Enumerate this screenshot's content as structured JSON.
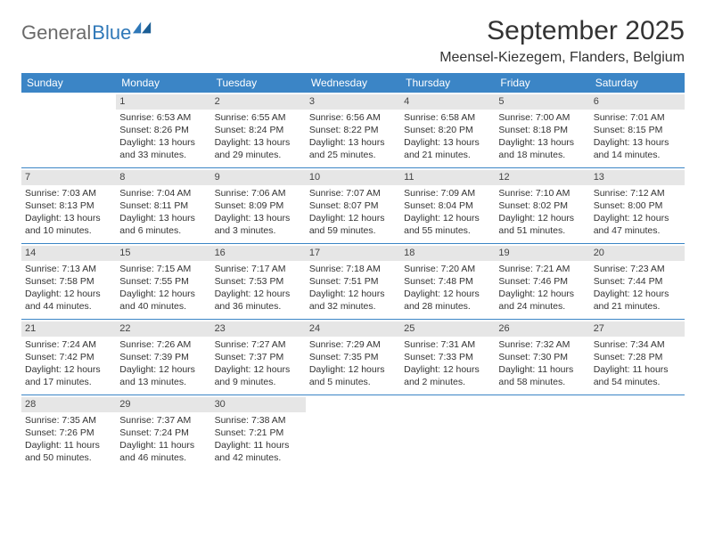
{
  "logo": {
    "part1": "General",
    "part2": "Blue"
  },
  "title": "September 2025",
  "location": "Meensel-Kiezegem, Flanders, Belgium",
  "colors": {
    "header_bg": "#3b85c6",
    "header_text": "#ffffff",
    "date_bg": "#e6e6e6",
    "rule": "#3b85c6",
    "text": "#333333",
    "logo_gray": "#6a6a6a",
    "logo_blue": "#2f78b8"
  },
  "dayNames": [
    "Sunday",
    "Monday",
    "Tuesday",
    "Wednesday",
    "Thursday",
    "Friday",
    "Saturday"
  ],
  "weeks": [
    [
      null,
      {
        "d": "1",
        "sr": "6:53 AM",
        "ss": "8:26 PM",
        "dl": "13 hours and 33 minutes."
      },
      {
        "d": "2",
        "sr": "6:55 AM",
        "ss": "8:24 PM",
        "dl": "13 hours and 29 minutes."
      },
      {
        "d": "3",
        "sr": "6:56 AM",
        "ss": "8:22 PM",
        "dl": "13 hours and 25 minutes."
      },
      {
        "d": "4",
        "sr": "6:58 AM",
        "ss": "8:20 PM",
        "dl": "13 hours and 21 minutes."
      },
      {
        "d": "5",
        "sr": "7:00 AM",
        "ss": "8:18 PM",
        "dl": "13 hours and 18 minutes."
      },
      {
        "d": "6",
        "sr": "7:01 AM",
        "ss": "8:15 PM",
        "dl": "13 hours and 14 minutes."
      }
    ],
    [
      {
        "d": "7",
        "sr": "7:03 AM",
        "ss": "8:13 PM",
        "dl": "13 hours and 10 minutes."
      },
      {
        "d": "8",
        "sr": "7:04 AM",
        "ss": "8:11 PM",
        "dl": "13 hours and 6 minutes."
      },
      {
        "d": "9",
        "sr": "7:06 AM",
        "ss": "8:09 PM",
        "dl": "13 hours and 3 minutes."
      },
      {
        "d": "10",
        "sr": "7:07 AM",
        "ss": "8:07 PM",
        "dl": "12 hours and 59 minutes."
      },
      {
        "d": "11",
        "sr": "7:09 AM",
        "ss": "8:04 PM",
        "dl": "12 hours and 55 minutes."
      },
      {
        "d": "12",
        "sr": "7:10 AM",
        "ss": "8:02 PM",
        "dl": "12 hours and 51 minutes."
      },
      {
        "d": "13",
        "sr": "7:12 AM",
        "ss": "8:00 PM",
        "dl": "12 hours and 47 minutes."
      }
    ],
    [
      {
        "d": "14",
        "sr": "7:13 AM",
        "ss": "7:58 PM",
        "dl": "12 hours and 44 minutes."
      },
      {
        "d": "15",
        "sr": "7:15 AM",
        "ss": "7:55 PM",
        "dl": "12 hours and 40 minutes."
      },
      {
        "d": "16",
        "sr": "7:17 AM",
        "ss": "7:53 PM",
        "dl": "12 hours and 36 minutes."
      },
      {
        "d": "17",
        "sr": "7:18 AM",
        "ss": "7:51 PM",
        "dl": "12 hours and 32 minutes."
      },
      {
        "d": "18",
        "sr": "7:20 AM",
        "ss": "7:48 PM",
        "dl": "12 hours and 28 minutes."
      },
      {
        "d": "19",
        "sr": "7:21 AM",
        "ss": "7:46 PM",
        "dl": "12 hours and 24 minutes."
      },
      {
        "d": "20",
        "sr": "7:23 AM",
        "ss": "7:44 PM",
        "dl": "12 hours and 21 minutes."
      }
    ],
    [
      {
        "d": "21",
        "sr": "7:24 AM",
        "ss": "7:42 PM",
        "dl": "12 hours and 17 minutes."
      },
      {
        "d": "22",
        "sr": "7:26 AM",
        "ss": "7:39 PM",
        "dl": "12 hours and 13 minutes."
      },
      {
        "d": "23",
        "sr": "7:27 AM",
        "ss": "7:37 PM",
        "dl": "12 hours and 9 minutes."
      },
      {
        "d": "24",
        "sr": "7:29 AM",
        "ss": "7:35 PM",
        "dl": "12 hours and 5 minutes."
      },
      {
        "d": "25",
        "sr": "7:31 AM",
        "ss": "7:33 PM",
        "dl": "12 hours and 2 minutes."
      },
      {
        "d": "26",
        "sr": "7:32 AM",
        "ss": "7:30 PM",
        "dl": "11 hours and 58 minutes."
      },
      {
        "d": "27",
        "sr": "7:34 AM",
        "ss": "7:28 PM",
        "dl": "11 hours and 54 minutes."
      }
    ],
    [
      {
        "d": "28",
        "sr": "7:35 AM",
        "ss": "7:26 PM",
        "dl": "11 hours and 50 minutes."
      },
      {
        "d": "29",
        "sr": "7:37 AM",
        "ss": "7:24 PM",
        "dl": "11 hours and 46 minutes."
      },
      {
        "d": "30",
        "sr": "7:38 AM",
        "ss": "7:21 PM",
        "dl": "11 hours and 42 minutes."
      },
      null,
      null,
      null,
      null
    ]
  ],
  "labels": {
    "sunrise": "Sunrise:",
    "sunset": "Sunset:",
    "daylight": "Daylight:"
  }
}
